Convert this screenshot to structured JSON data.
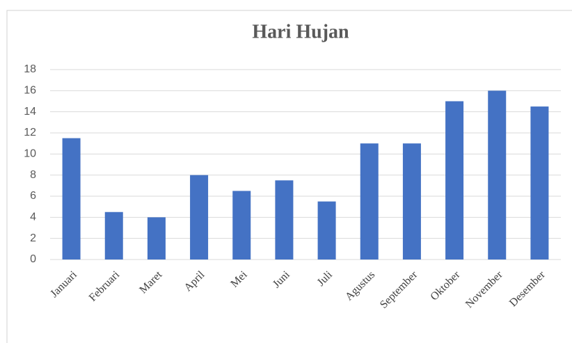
{
  "chart_data": {
    "type": "bar",
    "title": "Hari Hujan",
    "categories": [
      "Januari",
      "Februari",
      "Maret",
      "April",
      "Mei",
      "Juni",
      "Juli",
      "Agustus",
      "September",
      "Oktober",
      "November",
      "Desember"
    ],
    "values": [
      11.5,
      4.5,
      4,
      8,
      6.5,
      7.5,
      5.5,
      11,
      11,
      15,
      16,
      14.5
    ],
    "color": "#4472c4",
    "ylim": [
      0,
      18
    ],
    "yticks": [
      0,
      2,
      4,
      6,
      8,
      10,
      12,
      14,
      16,
      18
    ],
    "grid": true
  }
}
